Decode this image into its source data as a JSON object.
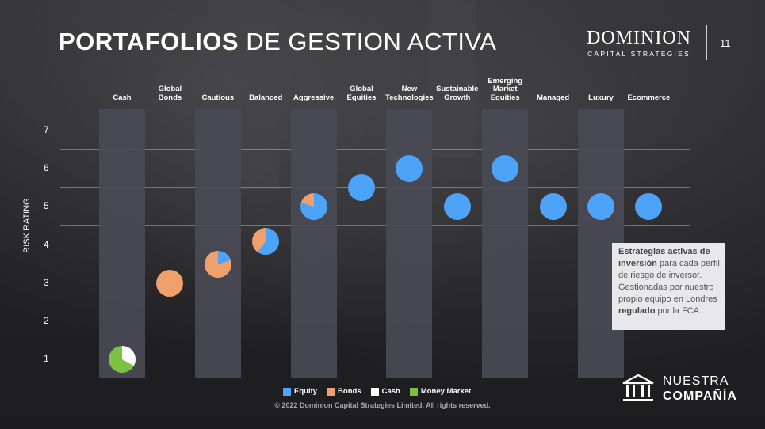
{
  "slide": {
    "title_bold": "PORTAFOLIOS",
    "title_rest": "DE GESTION ACTIVA",
    "page_number": "11"
  },
  "logo": {
    "main": "DOMINION",
    "sub": "CAPITAL STRATEGIES"
  },
  "note": {
    "bold_1": "Estrategias activas de inversión",
    "text_1": " para cada perfil de riesgo de inversor.",
    "text_2": "Gestionadas por nuestro propio equipo en Londres ",
    "bold_2": "regulado",
    "text_3": " por la FCA."
  },
  "company_link": {
    "line_1": "NUESTRA",
    "line_2": "COMPAÑÍA",
    "icon": "building-columns-icon"
  },
  "copyright": "© 2022 Dominion Capital Strategies Limited.  All rights reserved.",
  "colors": {
    "equity": "#4da3f7",
    "bonds": "#f0a06c",
    "cash": "#ffffff",
    "money_market": "#7cc242",
    "bar": "#4a4a55"
  },
  "chart_data": {
    "type": "scatter",
    "title": "",
    "xlabel": "",
    "ylabel": "RISK RATING",
    "ylim": [
      0.5,
      7.5
    ],
    "yticks": [
      1,
      2,
      3,
      4,
      5,
      6,
      7
    ],
    "legend": [
      "Equity",
      "Bonds",
      "Cash",
      "Money Market"
    ],
    "legend_position": "bottom",
    "categories": [
      "Cash",
      "Global Bonds",
      "Cautious",
      "Balanced",
      "Aggressive",
      "Global Equities",
      "New Technologies",
      "Sustainable Growth",
      "Emerging Market Equities",
      "Managed",
      "Luxury",
      "Ecommerce"
    ],
    "points": [
      {
        "category": "Cash",
        "risk": 1,
        "equity": 0,
        "bonds": 0,
        "cash": 0.33,
        "money_market": 0.67
      },
      {
        "category": "Global Bonds",
        "risk": 3,
        "equity": 0,
        "bonds": 1,
        "cash": 0,
        "money_market": 0
      },
      {
        "category": "Cautious",
        "risk": 3.5,
        "equity": 0.2,
        "bonds": 0.8,
        "cash": 0,
        "money_market": 0
      },
      {
        "category": "Balanced",
        "risk": 4.1,
        "equity": 0.6,
        "bonds": 0.4,
        "cash": 0,
        "money_market": 0
      },
      {
        "category": "Aggressive",
        "risk": 5,
        "equity": 0.8,
        "bonds": 0.2,
        "cash": 0,
        "money_market": 0
      },
      {
        "category": "Global Equities",
        "risk": 5.5,
        "equity": 1,
        "bonds": 0,
        "cash": 0,
        "money_market": 0
      },
      {
        "category": "New Technologies",
        "risk": 6,
        "equity": 1,
        "bonds": 0,
        "cash": 0,
        "money_market": 0
      },
      {
        "category": "Sustainable Growth",
        "risk": 5,
        "equity": 1,
        "bonds": 0,
        "cash": 0,
        "money_market": 0
      },
      {
        "category": "Emerging Market Equities",
        "risk": 6,
        "equity": 1,
        "bonds": 0,
        "cash": 0,
        "money_market": 0
      },
      {
        "category": "Managed",
        "risk": 5,
        "equity": 1,
        "bonds": 0,
        "cash": 0,
        "money_market": 0
      },
      {
        "category": "Luxury",
        "risk": 5,
        "equity": 1,
        "bonds": 0,
        "cash": 0,
        "money_market": 0
      },
      {
        "category": "Ecommerce",
        "risk": 5,
        "equity": 1,
        "bonds": 0,
        "cash": 0,
        "money_market": 0
      }
    ],
    "grid": true
  }
}
